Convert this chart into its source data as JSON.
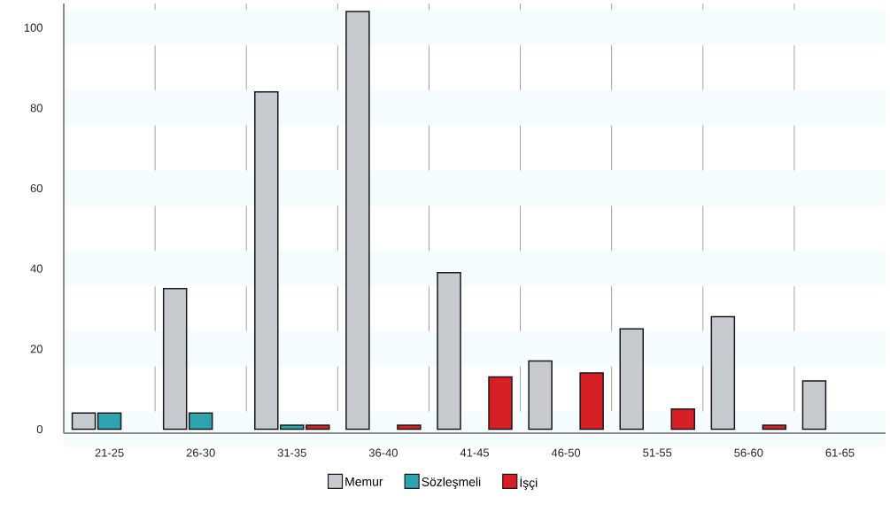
{
  "chart_data": {
    "type": "bar",
    "categories": [
      "21-25",
      "26-30",
      "31-35",
      "36-40",
      "41-45",
      "46-50",
      "51-55",
      "56-60",
      "61-65"
    ],
    "series": [
      {
        "name": "Memur",
        "color": "#c7cbcf",
        "values": [
          4,
          35,
          84,
          104,
          39,
          17,
          25,
          28,
          12
        ]
      },
      {
        "name": "Sözleşmeli",
        "color": "#2ea3b0",
        "values": [
          4,
          4,
          1,
          null,
          null,
          null,
          null,
          null,
          null
        ]
      },
      {
        "name": "İşçi",
        "color": "#d71f26",
        "values": [
          null,
          null,
          1,
          1,
          13,
          14,
          5,
          1,
          null
        ]
      }
    ],
    "ylim": [
      -1,
      106
    ],
    "yticks": [
      0,
      20,
      40,
      60,
      80,
      100
    ],
    "grid": true,
    "legend": "bottom"
  }
}
